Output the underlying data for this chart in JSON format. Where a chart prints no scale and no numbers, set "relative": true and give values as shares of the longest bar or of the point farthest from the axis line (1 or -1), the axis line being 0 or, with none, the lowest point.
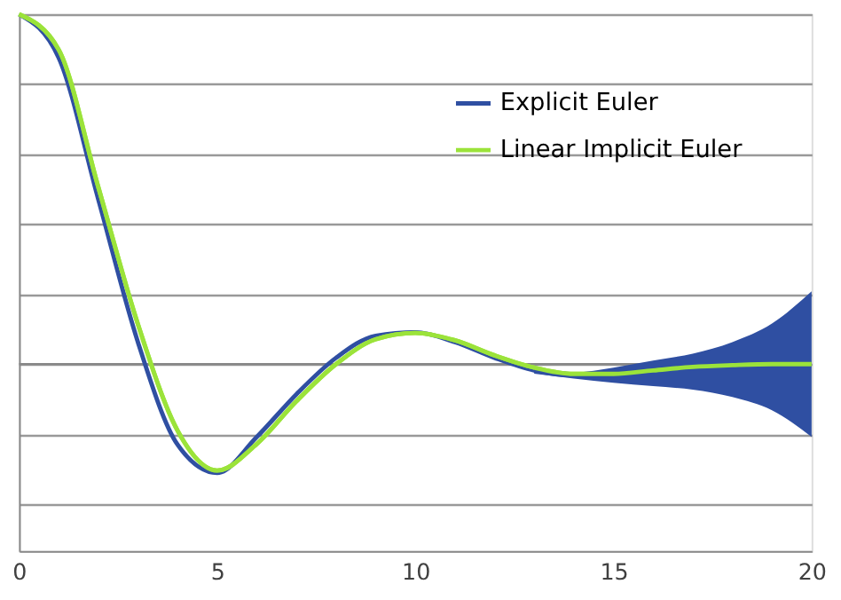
{
  "chart_data": {
    "type": "line",
    "relative": true,
    "x": [
      0,
      1,
      2,
      3,
      4,
      5,
      6,
      7,
      8,
      9,
      10,
      11,
      12,
      13,
      14,
      15,
      16,
      17,
      18,
      19,
      20
    ],
    "xlim": [
      0,
      20
    ],
    "xticks": [
      0,
      5,
      10,
      15,
      20
    ],
    "series": [
      {
        "name": "Explicit Euler",
        "color": "#2f4fa2",
        "values": [
          1,
          0.876,
          0.471,
          0.063,
          -0.23,
          -0.311,
          -0.208,
          -0.086,
          0.018,
          0.081,
          0.091,
          0.063,
          0.018,
          -0.018,
          -0.032,
          -0.028,
          -0.018,
          -0.008,
          -0.003,
          0,
          0
        ],
        "lower": [
          null,
          null,
          null,
          null,
          null,
          null,
          null,
          null,
          null,
          null,
          null,
          null,
          null,
          -0.027,
          -0.041,
          -0.053,
          -0.063,
          -0.073,
          -0.094,
          -0.132,
          -0.208
        ],
        "upper": [
          null,
          null,
          null,
          null,
          null,
          null,
          null,
          null,
          null,
          null,
          null,
          null,
          null,
          -0.009,
          -0.023,
          -0.01,
          0.01,
          0.03,
          0.063,
          0.116,
          0.208
        ]
      },
      {
        "name": "Linear Implicit Euler",
        "color": "#9be33a",
        "values": [
          1,
          0.899,
          0.506,
          0.114,
          -0.19,
          -0.304,
          -0.228,
          -0.106,
          0,
          0.071,
          0.089,
          0.068,
          0.025,
          -0.01,
          -0.028,
          -0.028,
          -0.018,
          -0.008,
          -0.003,
          0,
          0
        ]
      }
    ],
    "grid": "y",
    "legend": "top right",
    "marker": "none",
    "line_style": "solid"
  }
}
